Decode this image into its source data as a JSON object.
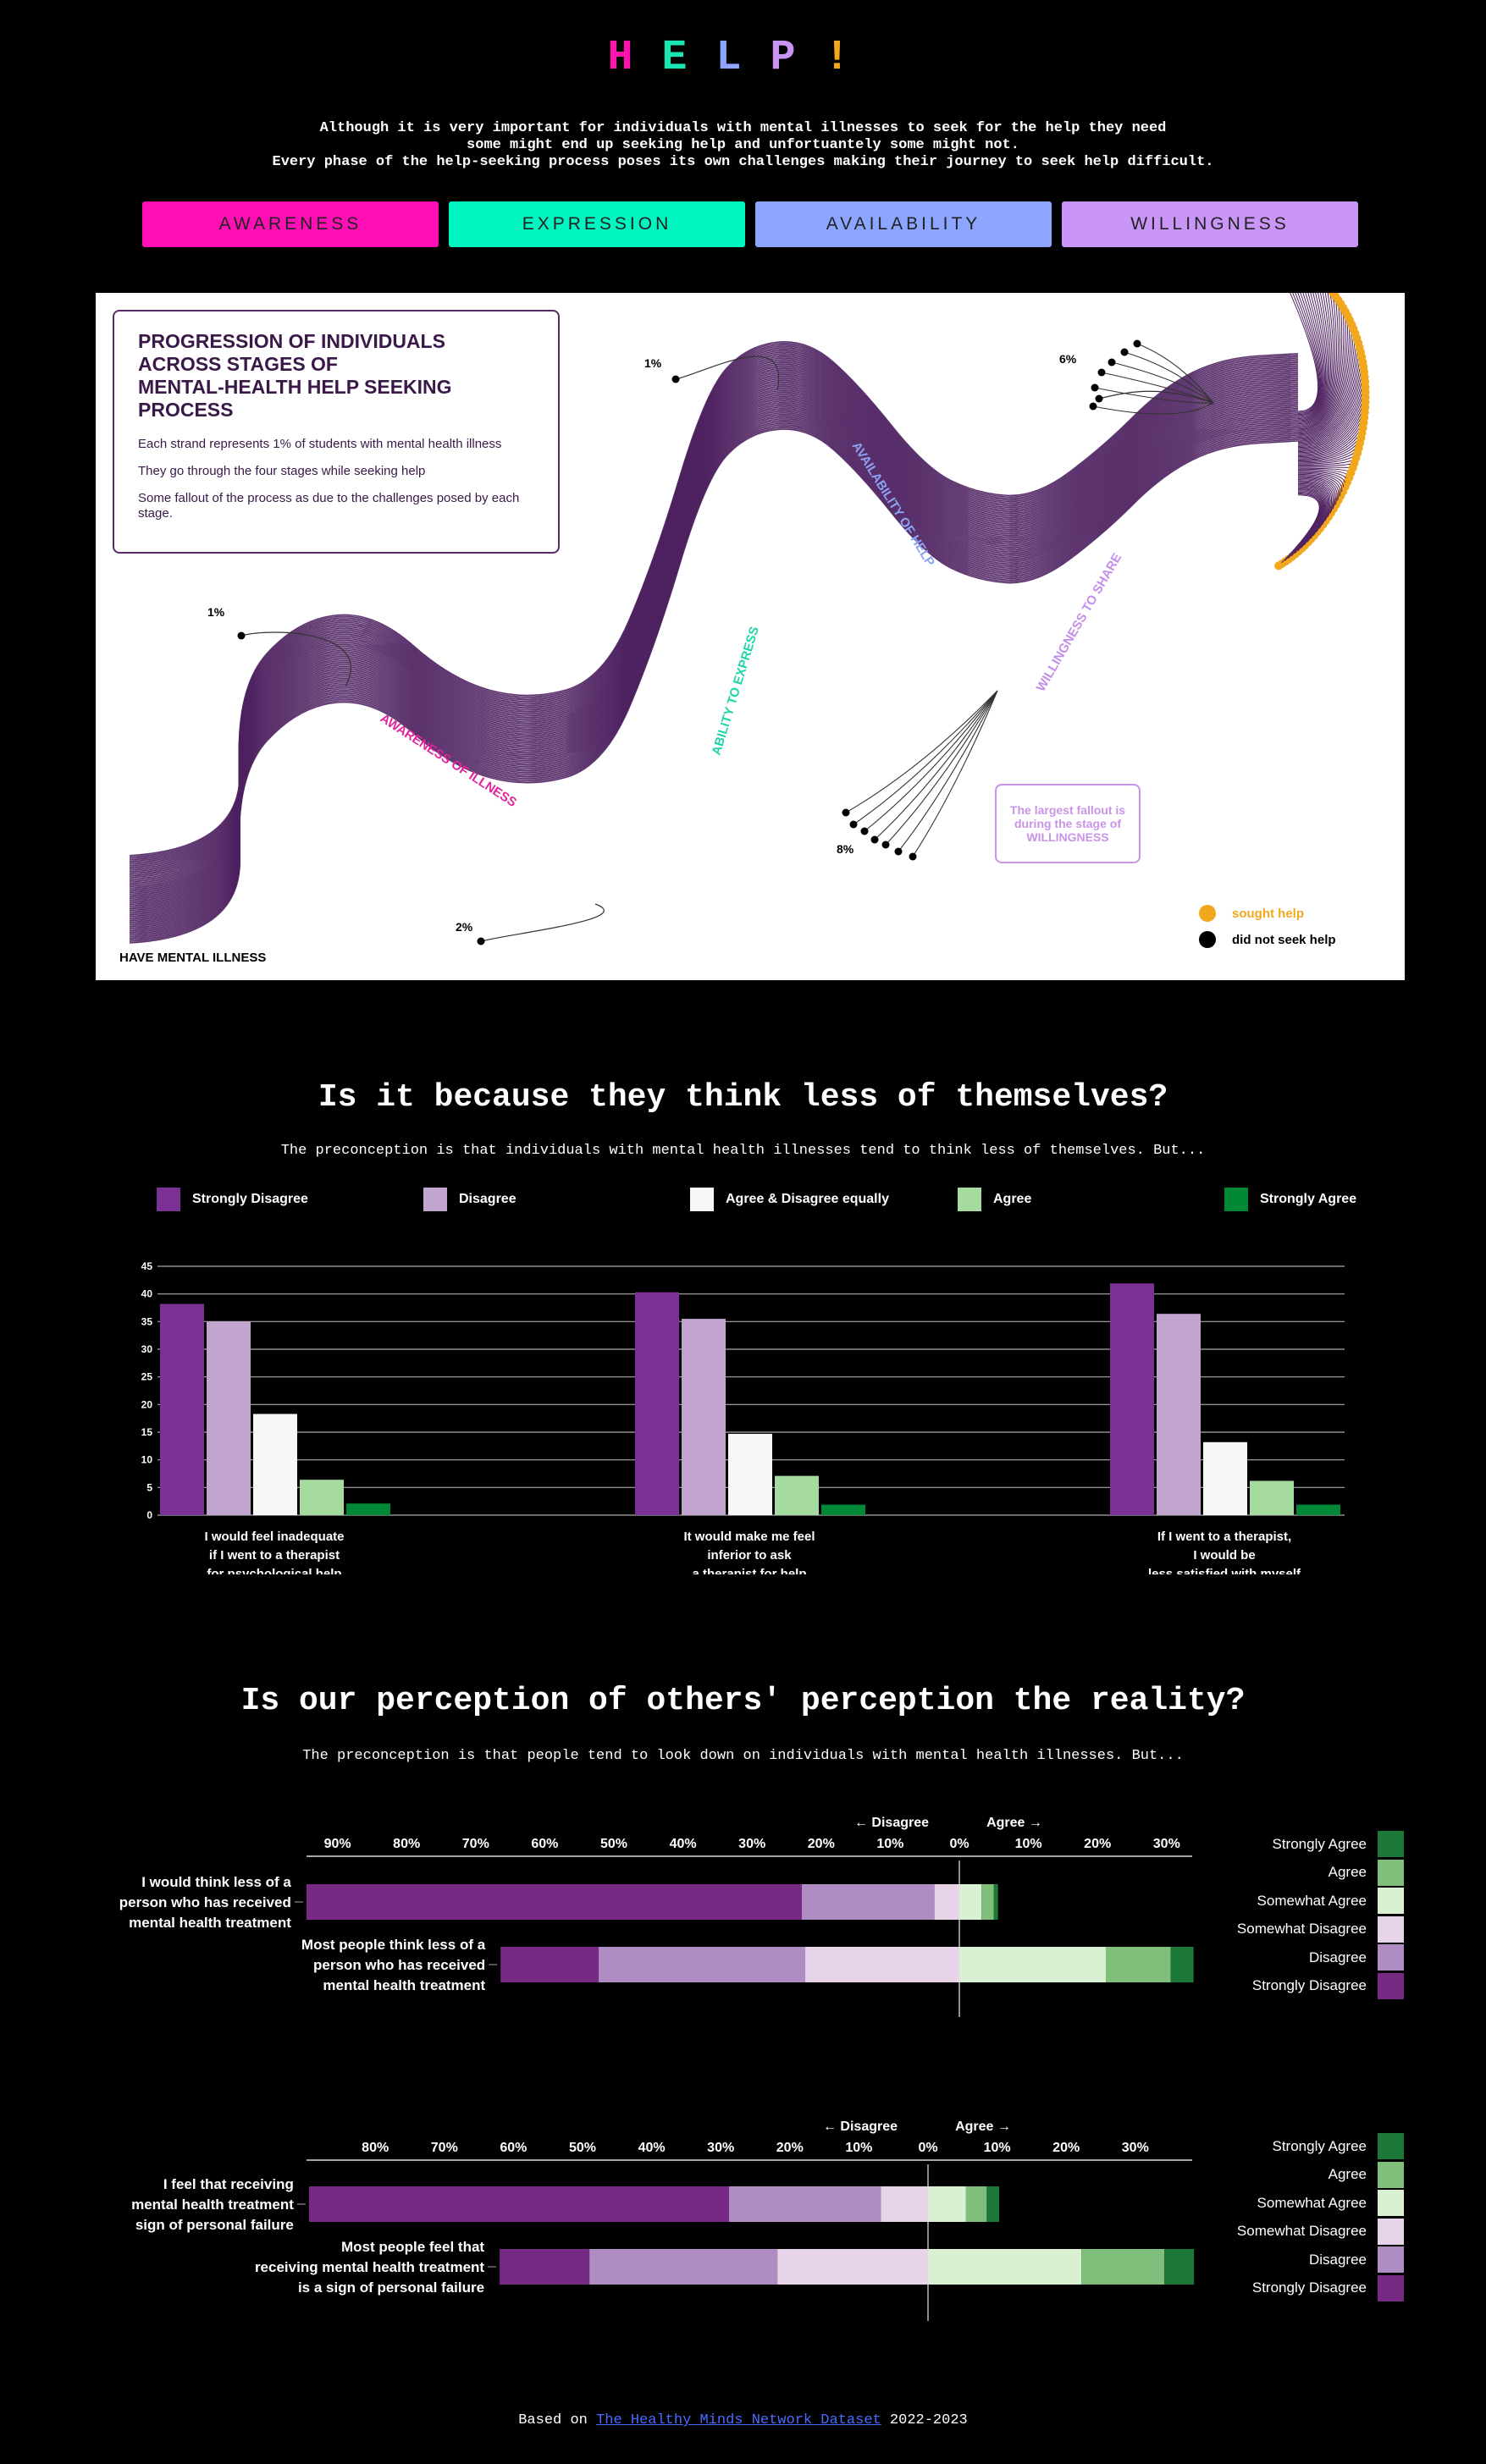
{
  "header": {
    "title_letters": [
      {
        "char": "H",
        "color": "#ff12b0"
      },
      {
        "char": "E",
        "color": "#19e6b0"
      },
      {
        "char": "L",
        "color": "#8ea6ff"
      },
      {
        "char": "P",
        "color": "#c994f2"
      },
      {
        "char": "!",
        "color": "#f2a81d"
      }
    ],
    "intro_lines": [
      "Although it is very important for individuals with mental illnesses to seek for the help they need",
      "some might end up seeking help and unfortuantely some might not.",
      "Every phase of the help-seeking process poses its own challenges making their journey to seek help difficult."
    ]
  },
  "stages": [
    {
      "label": "AWARENESS",
      "color": "#ff0fb4"
    },
    {
      "label": "EXPRESSION",
      "color": "#00f5c0"
    },
    {
      "label": "AVAILABILITY",
      "color": "#8ca6ff"
    },
    {
      "label": "WILLINGNESS",
      "color": "#c996f7"
    }
  ],
  "flow": {
    "title_lines": [
      "PROGRESSION OF INDIVIDUALS",
      "ACROSS STAGES OF",
      "MENTAL-HEALTH HELP SEEKING PROCESS"
    ],
    "notes": [
      "Each strand represents 1% of students with mental health illness",
      "They go through the four stages while seeking help",
      "Some fallout of the process as due to the challenges posed by each stage."
    ],
    "start_label": "HAVE MENTAL ILLNESS",
    "stage_labels": [
      {
        "text": "AWARENESS OF ILLNESS",
        "color": "#e0249e"
      },
      {
        "text": "ABILITY TO EXPRESS",
        "color": "#1fd6a8"
      },
      {
        "text": "AVAILABILITY OF HELP",
        "color": "#8ca2f2"
      },
      {
        "text": "WILLINGNESS TO SHARE",
        "color": "#c38fea"
      }
    ],
    "fallouts": [
      "1%",
      "2%",
      "1%",
      "8%",
      "6%"
    ],
    "fallout_note": "The largest fallout is during the stage of WILLINGNESS",
    "legend": [
      {
        "label": "sought help",
        "color": "#f2a81d"
      },
      {
        "label": "did not seek help",
        "color": "#000000"
      }
    ],
    "strand_color": "#4e2160"
  },
  "section2": {
    "title": "Is it because they think less of themselves?",
    "subtitle": "The preconception is that individuals with mental health illnesses tend to think less of themselves. But...",
    "legend": [
      {
        "label": "Strongly Disagree",
        "color": "#7b3294"
      },
      {
        "label": "Disagree",
        "color": "#c2a5cf"
      },
      {
        "label": "Agree & Disagree equally",
        "color": "#f7f7f7"
      },
      {
        "label": "Agree",
        "color": "#a6dba0"
      },
      {
        "label": "Strongly Agree",
        "color": "#008837"
      }
    ]
  },
  "section3": {
    "title": "Is our perception of others' perception the reality?",
    "subtitle": "The preconception is that people tend to look down on individuals with mental health illnesses. But...",
    "disagree_arrow": "← Disagree",
    "agree_arrow": "Agree →",
    "legend": [
      {
        "label": "Strongly Agree",
        "color": "#1b7837"
      },
      {
        "label": "Agree",
        "color": "#7fbf7b"
      },
      {
        "label": "Somewhat Agree",
        "color": "#d9f0d3"
      },
      {
        "label": "Somewhat Disagree",
        "color": "#e7d4e8"
      },
      {
        "label": "Disagree",
        "color": "#af8dc3"
      },
      {
        "label": "Strongly Disagree",
        "color": "#762a83"
      }
    ]
  },
  "chart_data": [
    {
      "type": "bar",
      "categories": [
        "I would feel inadequate\nif I went to a therapist\nfor psychological help",
        "It would make me feel\ninferior to ask\na therapist for help",
        "If I went to a therapist,\nI would be\nless satisfied with myself"
      ],
      "series": [
        {
          "name": "Strongly Disagree",
          "values": [
            38.2,
            40.3,
            41.9
          ]
        },
        {
          "name": "Disagree",
          "values": [
            35.0,
            35.5,
            36.4
          ]
        },
        {
          "name": "Agree & Disagree equally",
          "values": [
            18.3,
            14.7,
            13.2
          ]
        },
        {
          "name": "Agree",
          "values": [
            6.4,
            7.1,
            6.2
          ]
        },
        {
          "name": "Strongly Agree",
          "values": [
            2.1,
            1.9,
            1.9
          ]
        }
      ],
      "yticks": [
        0,
        5,
        10,
        15,
        20,
        25,
        30,
        35,
        40,
        45
      ],
      "ylim": [
        0,
        45
      ],
      "grid": true
    },
    {
      "type": "bar",
      "orientation": "horizontal-diverging",
      "categories": [
        "I would think less of a\nperson who has received\nmental health treatment",
        "Most people think less of a\nperson who has received\nmental health treatment"
      ],
      "series": [
        {
          "name": "Strongly Disagree",
          "values": [
            71.7,
            14.2
          ]
        },
        {
          "name": "Disagree",
          "values": [
            19.2,
            29.9
          ]
        },
        {
          "name": "Somewhat Disagree",
          "values": [
            3.6,
            22.3
          ]
        },
        {
          "name": "Somewhat Agree",
          "values": [
            3.2,
            21.2
          ]
        },
        {
          "name": "Agree",
          "values": [
            1.8,
            9.4
          ]
        },
        {
          "name": "Strongly Agree",
          "values": [
            0.6,
            3.3
          ]
        }
      ],
      "xticks": [
        "90%",
        "80%",
        "70%",
        "60%",
        "50%",
        "40%",
        "30%",
        "20%",
        "10%",
        "0%",
        "10%",
        "20%",
        "30%"
      ],
      "xlim": [
        -93.5,
        33.5
      ]
    },
    {
      "type": "bar",
      "orientation": "horizontal-diverging",
      "categories": [
        "I feel that receiving\nmental health treatment\nsign of personal failure",
        "Most people feel that\nreceiving mental health treatment\nis a sign of personal failure"
      ],
      "series": [
        {
          "name": "Strongly Disagree",
          "values": [
            60.8,
            13.0
          ]
        },
        {
          "name": "Disagree",
          "values": [
            22.0,
            27.2
          ]
        },
        {
          "name": "Somewhat Disagree",
          "values": [
            6.8,
            21.8
          ]
        },
        {
          "name": "Somewhat Agree",
          "values": [
            5.5,
            22.2
          ]
        },
        {
          "name": "Agree",
          "values": [
            3.0,
            12.0
          ]
        },
        {
          "name": "Strongly Agree",
          "values": [
            1.8,
            4.3
          ]
        }
      ],
      "xticks": [
        "80%",
        "70%",
        "60%",
        "50%",
        "40%",
        "30%",
        "20%",
        "10%",
        "0%",
        "10%",
        "20%",
        "30%"
      ],
      "xlim": [
        -89.5,
        38.0
      ]
    }
  ],
  "footer": {
    "prefix": "Based on ",
    "link": "The Healthy Minds Network Dataset",
    "suffix": " 2022-2023"
  }
}
